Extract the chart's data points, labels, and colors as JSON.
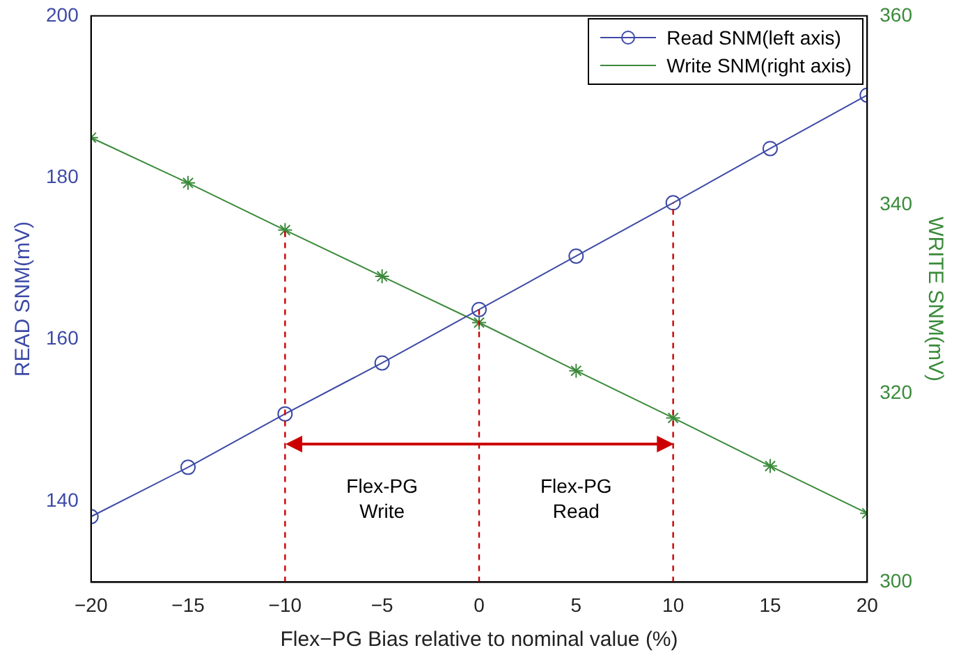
{
  "chart_data": {
    "type": "line",
    "xlabel": "Flex−PG Bias relative to nominal value (%)",
    "ylabel": "READ SNM(mV)",
    "y2label": "WRITE SNM(mV)",
    "x": [
      -20,
      -15,
      -10,
      -5,
      0,
      5,
      10,
      15,
      20
    ],
    "series": [
      {
        "name": "Read SNM(left axis)",
        "color": "#3d4aa6",
        "marker": "circle",
        "values": [
          138.1,
          144.2,
          150.8,
          157.1,
          163.7,
          170.3,
          176.9,
          183.6,
          190.2
        ]
      },
      {
        "name": "Write SNM(right axis)",
        "color": "#3a8a3a",
        "marker": "cross",
        "axis": "y2",
        "values": [
          347.1,
          342.3,
          337.3,
          332.4,
          327.5,
          322.4,
          317.4,
          312.3,
          307.3
        ]
      }
    ],
    "xlim": [
      -20,
      20
    ],
    "xticks": [
      {
        "value": -20,
        "label": "−20"
      },
      {
        "value": -15,
        "label": "−15"
      },
      {
        "value": -10,
        "label": "−10"
      },
      {
        "value": -5,
        "label": "−5"
      },
      0,
      5,
      10,
      15,
      20
    ],
    "ylim": [
      130,
      200
    ],
    "yticks": [
      140,
      160,
      180,
      200
    ],
    "y2lim": [
      300,
      360
    ],
    "y2ticks": [
      300,
      320,
      340,
      360
    ],
    "ref_lines": [
      {
        "axis": "x",
        "value": -10,
        "color": "#cc0000",
        "line_style": "dashed"
      },
      {
        "axis": "x",
        "value": 0,
        "color": "#cc0000",
        "line_style": "dashed"
      },
      {
        "axis": "x",
        "value": 10,
        "color": "#cc0000",
        "line_style": "dashed"
      }
    ],
    "annotations": [
      "Flex-PG\nWrite",
      "Flex-PG\nRead"
    ],
    "legend": "top right",
    "grid": false,
    "line_style": "solid"
  }
}
